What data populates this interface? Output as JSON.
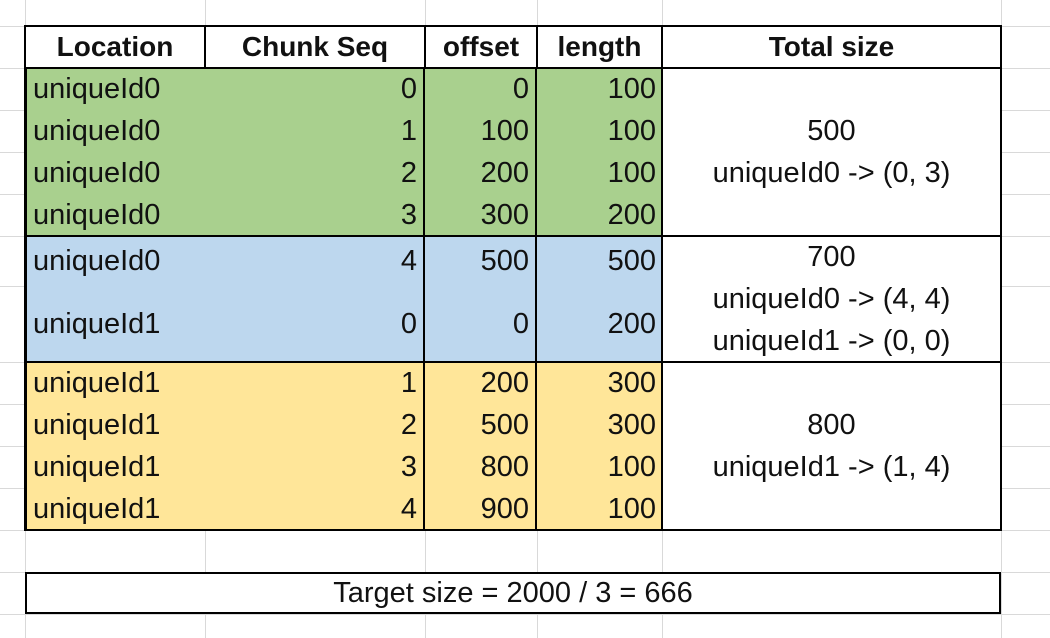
{
  "headers": [
    "Location",
    "Chunk Seq",
    "offset",
    "length",
    "Total size"
  ],
  "rows": [
    {
      "location": "uniqueId0",
      "seq": "0",
      "offset": "0",
      "length": "100",
      "group": "g"
    },
    {
      "location": "uniqueId0",
      "seq": "1",
      "offset": "100",
      "length": "100",
      "group": "g"
    },
    {
      "location": "uniqueId0",
      "seq": "2",
      "offset": "200",
      "length": "100",
      "group": "g"
    },
    {
      "location": "uniqueId0",
      "seq": "3",
      "offset": "300",
      "length": "200",
      "group": "g"
    },
    {
      "location": "uniqueId0",
      "seq": "4",
      "offset": "500",
      "length": "500",
      "group": "b"
    },
    {
      "location": "uniqueId1",
      "seq": "0",
      "offset": "0",
      "length": "200",
      "group": "b"
    },
    {
      "location": "uniqueId1",
      "seq": "1",
      "offset": "200",
      "length": "300",
      "group": "y"
    },
    {
      "location": "uniqueId1",
      "seq": "2",
      "offset": "500",
      "length": "300",
      "group": "y"
    },
    {
      "location": "uniqueId1",
      "seq": "3",
      "offset": "800",
      "length": "100",
      "group": "y"
    },
    {
      "location": "uniqueId1",
      "seq": "4",
      "offset": "900",
      "length": "100",
      "group": "y"
    }
  ],
  "totals": [
    {
      "size": "500",
      "mappings": [
        "uniqueId0 -> (0, 3)"
      ]
    },
    {
      "size": "700",
      "mappings": [
        "uniqueId0 -> (4, 4)",
        "uniqueId1 -> (0, 0)"
      ]
    },
    {
      "size": "800",
      "mappings": [
        "uniqueId1 -> (1, 4)"
      ]
    }
  ],
  "target": "Target size = 2000 / 3 = 666",
  "colors": {
    "green": "#a9d08e",
    "blue": "#bdd7ee",
    "yellow": "#ffe699",
    "grid": "#d9d9d9",
    "border": "#000000"
  }
}
